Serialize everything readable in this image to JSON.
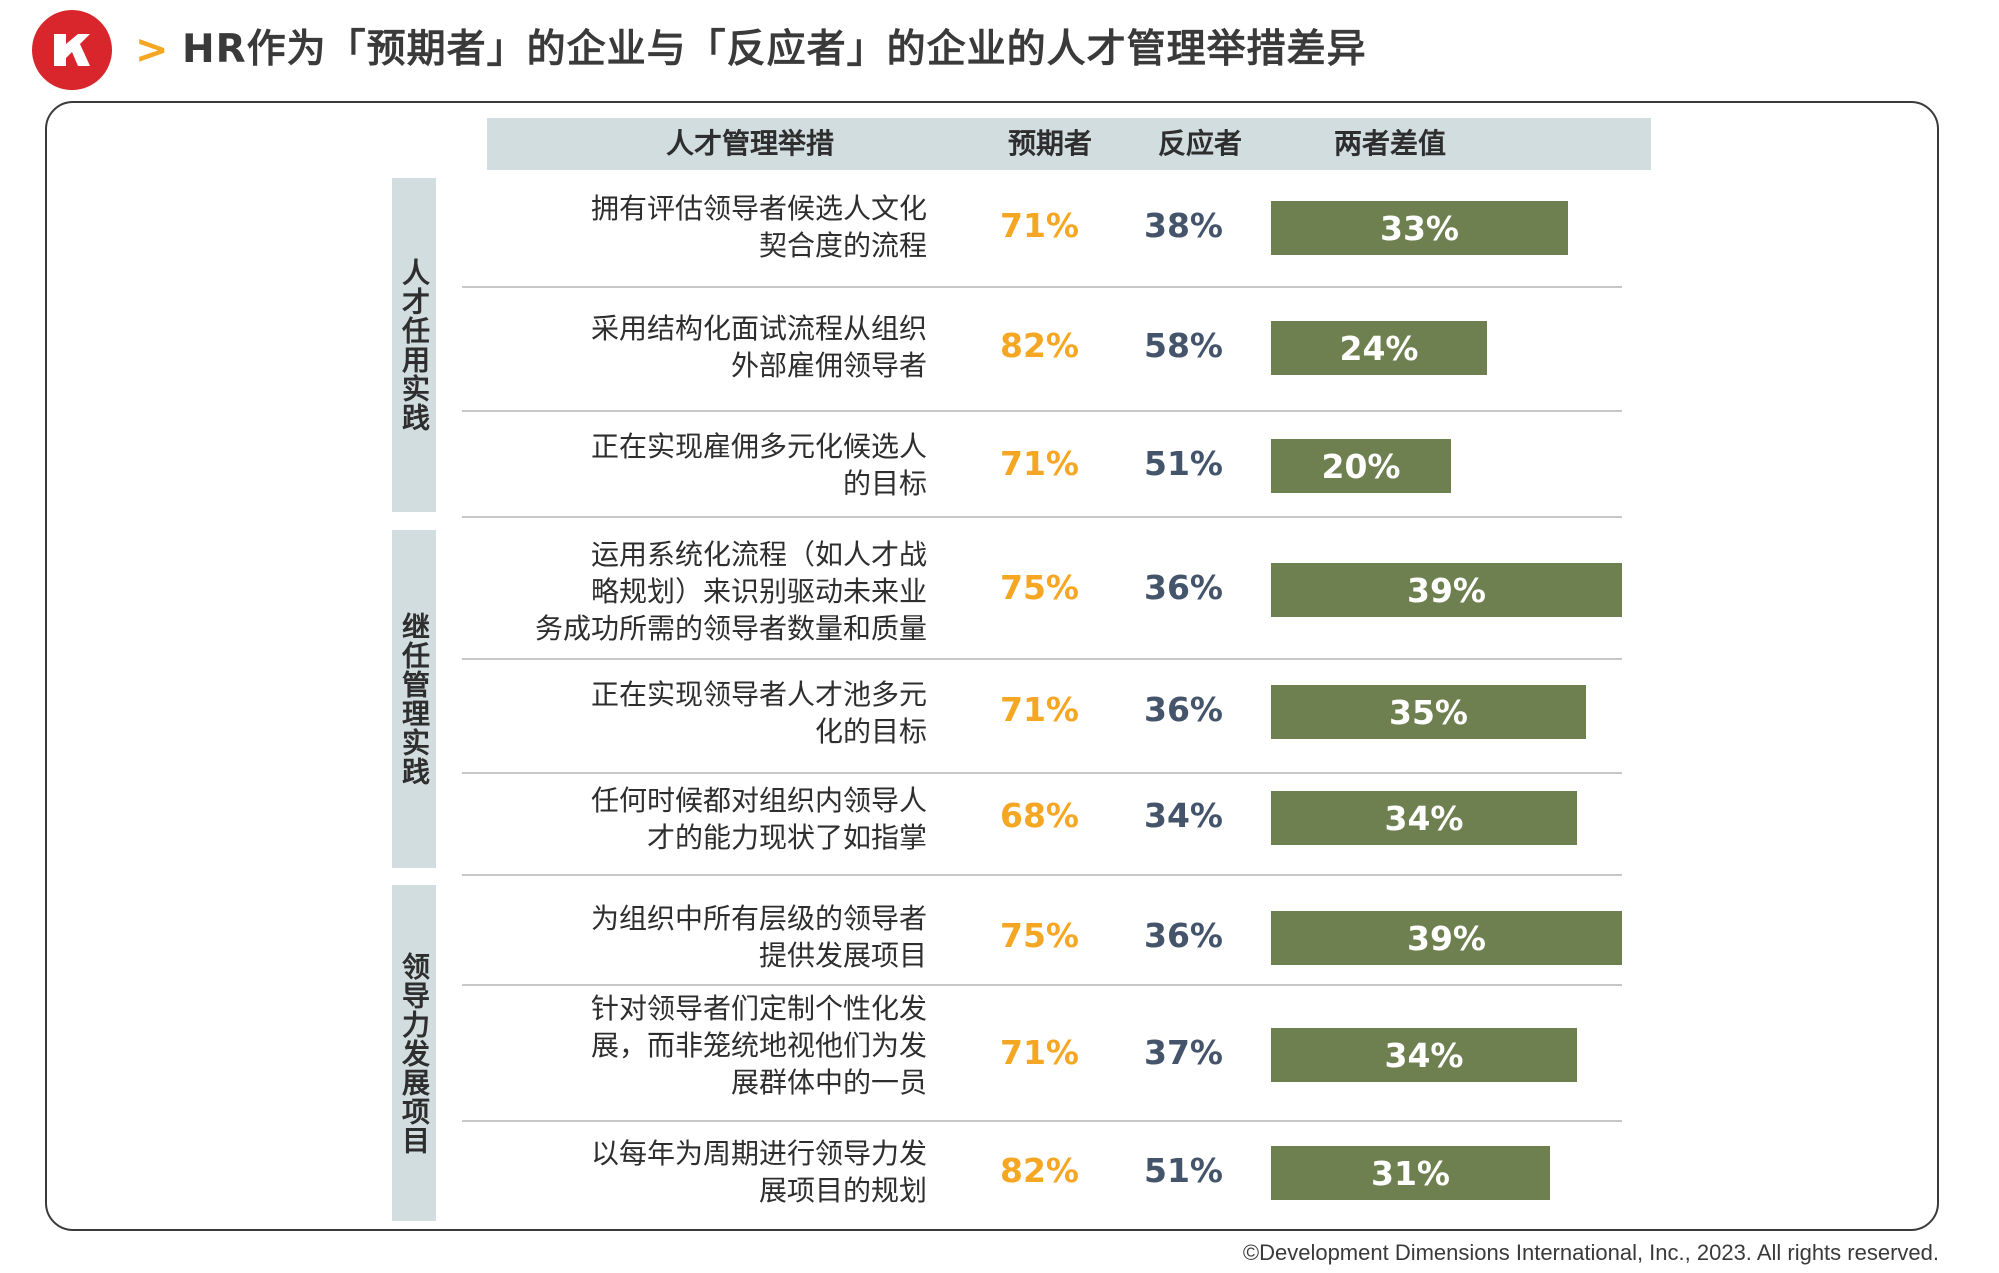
{
  "title": "HR作为「预期者」的企业与「反应者」的企业的人才管理举措差异",
  "icons": {
    "brand": "ddi-logo-icon",
    "title_marker": "chevron-right-icon"
  },
  "colors": {
    "logo_red": "#d8262c",
    "accent_orange": "#f5a623",
    "reactor_gray": "#44546a",
    "bar_green": "#6f8050",
    "header_bg": "#d2dde0"
  },
  "columns": {
    "practice": "人才管理举措",
    "anticipator": "预期者",
    "reactor": "反应者",
    "difference": "两者差值"
  },
  "groups": [
    {
      "label": "人才任用实践"
    },
    {
      "label": "继任管理实践"
    },
    {
      "label": "领导力发展项目"
    }
  ],
  "chart_data": {
    "type": "table",
    "title": "HR作为「预期者」的企业与「反应者」的企业的人才管理举措差异",
    "columns": [
      "人才管理举措",
      "预期者",
      "反应者",
      "两者差值"
    ],
    "rows": [
      {
        "group": "人才任用实践",
        "label": "拥有评估领导者候选人文化\n契合度的流程",
        "anticipator": 71,
        "reactor": 38,
        "difference": 33,
        "anticipator_text": "71%",
        "reactor_text": "38%",
        "difference_text": "33%"
      },
      {
        "group": "人才任用实践",
        "label": "采用结构化面试流程从组织\n外部雇佣领导者",
        "anticipator": 82,
        "reactor": 58,
        "difference": 24,
        "anticipator_text": "82%",
        "reactor_text": "58%",
        "difference_text": "24%"
      },
      {
        "group": "人才任用实践",
        "label": "正在实现雇佣多元化候选人\n的目标",
        "anticipator": 71,
        "reactor": 51,
        "difference": 20,
        "anticipator_text": "71%",
        "reactor_text": "51%",
        "difference_text": "20%"
      },
      {
        "group": "继任管理实践",
        "label": "运用系统化流程（如人才战\n略规划）来识别驱动未来业\n务成功所需的领导者数量和质量",
        "anticipator": 75,
        "reactor": 36,
        "difference": 39,
        "anticipator_text": "75%",
        "reactor_text": "36%",
        "difference_text": "39%"
      },
      {
        "group": "继任管理实践",
        "label": "正在实现领导者人才池多元\n化的目标",
        "anticipator": 71,
        "reactor": 36,
        "difference": 35,
        "anticipator_text": "71%",
        "reactor_text": "36%",
        "difference_text": "35%"
      },
      {
        "group": "继任管理实践",
        "label": "任何时候都对组织内领导人\n才的能力现状了如指掌",
        "anticipator": 68,
        "reactor": 34,
        "difference": 34,
        "anticipator_text": "68%",
        "reactor_text": "34%",
        "difference_text": "34%"
      },
      {
        "group": "领导力发展项目",
        "label": "为组织中所有层级的领导者\n提供发展项目",
        "anticipator": 75,
        "reactor": 36,
        "difference": 39,
        "anticipator_text": "75%",
        "reactor_text": "36%",
        "difference_text": "39%"
      },
      {
        "group": "领导力发展项目",
        "label": "针对领导者们定制个性化发\n展，而非笼统地视他们为发\n展群体中的一员",
        "anticipator": 71,
        "reactor": 37,
        "difference": 34,
        "anticipator_text": "71%",
        "reactor_text": "37%",
        "difference_text": "34%"
      },
      {
        "group": "领导力发展项目",
        "label": "以每年为周期进行领导力发\n展项目的规划",
        "anticipator": 82,
        "reactor": 51,
        "difference": 31,
        "anticipator_text": "82%",
        "reactor_text": "51%",
        "difference_text": "31%"
      }
    ]
  },
  "copyright": "©Development Dimensions International, Inc., 2023. All rights reserved."
}
